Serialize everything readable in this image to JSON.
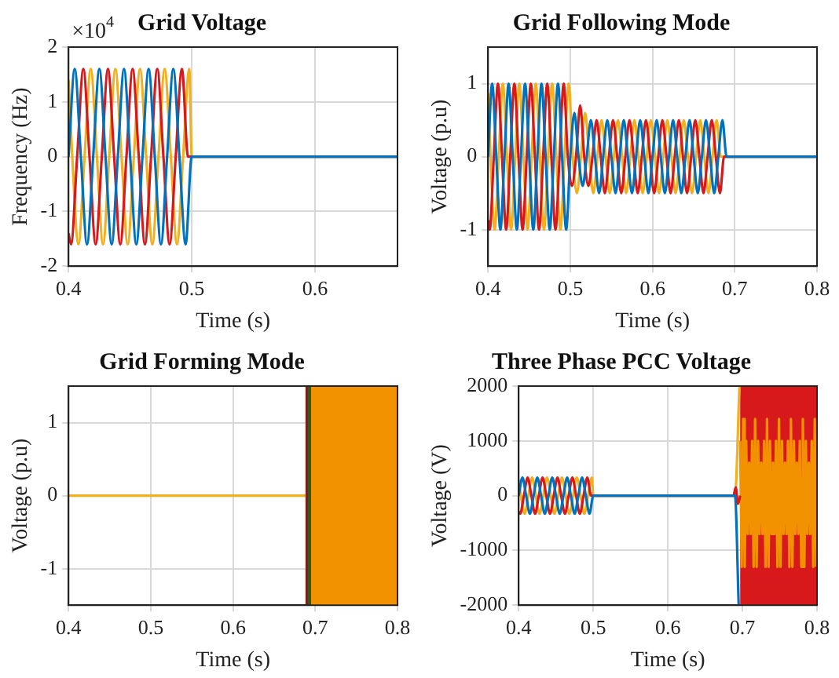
{
  "chart_data": [
    {
      "type": "line",
      "title": "Grid Voltage",
      "xlabel": "Time (s)",
      "ylabel": "Frequency (Hz)",
      "xlim": [
        0.4,
        0.667
      ],
      "xticks": [
        0.4,
        0.5,
        0.6
      ],
      "ylim": [
        -2,
        2
      ],
      "yticks": [
        -2,
        -1,
        0,
        1,
        2
      ],
      "grid": true,
      "marker": "none",
      "annotations": [
        "×10$^{4}$"
      ],
      "series": [
        {
          "color": "#0072bd",
          "x": [
            0.4,
            0.405,
            0.41,
            0.415,
            0.42,
            0.425,
            0.43,
            0.435,
            0.44,
            0.445,
            0.45,
            0.455,
            0.46,
            0.465,
            0.47,
            0.475,
            0.48,
            0.485,
            0.49,
            0.495,
            0.5,
            0.667
          ],
          "values": [
            0,
            1.6,
            0,
            -1.6,
            0,
            1.6,
            0,
            -1.6,
            0,
            1.6,
            0,
            -1.6,
            0,
            1.6,
            0,
            -1.6,
            0,
            1.6,
            0,
            -1.6,
            0,
            0
          ]
        },
        {
          "color": "#d7191c",
          "x": [
            0.4,
            0.402,
            0.407,
            0.412,
            0.417,
            0.422,
            0.427,
            0.432,
            0.437,
            0.442,
            0.447,
            0.452,
            0.457,
            0.462,
            0.467,
            0.472,
            0.477,
            0.482,
            0.487,
            0.492,
            0.497,
            0.5,
            0.667
          ],
          "values": [
            -1.4,
            -1.6,
            0,
            1.6,
            0,
            -1.6,
            0,
            1.6,
            0,
            -1.6,
            0,
            1.6,
            0,
            -1.6,
            0,
            1.6,
            0,
            -1.6,
            0,
            1.6,
            0,
            0,
            0
          ]
        },
        {
          "color": "#f0b020",
          "x": [
            0.4,
            0.403,
            0.408,
            0.413,
            0.418,
            0.423,
            0.428,
            0.433,
            0.438,
            0.443,
            0.448,
            0.453,
            0.458,
            0.463,
            0.468,
            0.473,
            0.478,
            0.483,
            0.488,
            0.493,
            0.498,
            0.5,
            0.667
          ],
          "values": [
            1.4,
            0,
            -1.6,
            0,
            1.6,
            0,
            -1.6,
            0,
            1.6,
            0,
            -1.6,
            0,
            1.6,
            0,
            -1.6,
            0,
            1.6,
            0,
            -1.6,
            0,
            1.6,
            0,
            0
          ]
        }
      ]
    },
    {
      "type": "line",
      "title": "Grid Following Mode",
      "xlabel": "Time (s)",
      "ylabel": "Voltage (p.u)",
      "xlim": [
        0.4,
        0.8
      ],
      "xticks": [
        0.4,
        0.5,
        0.6,
        0.7,
        0.8
      ],
      "ylim": [
        -1.5,
        1.5
      ],
      "yticks": [
        -1,
        0,
        1
      ],
      "grid": true,
      "marker": "none",
      "series": [
        {
          "color": "#0072bd",
          "x": [
            0.4,
            0.405,
            0.41,
            0.415,
            0.42,
            0.425,
            0.43,
            0.435,
            0.44,
            0.445,
            0.45,
            0.455,
            0.46,
            0.465,
            0.47,
            0.475,
            0.48,
            0.485,
            0.49,
            0.495,
            0.5,
            0.505,
            0.51,
            0.515,
            0.52,
            0.525,
            0.53,
            0.535,
            0.54,
            0.545,
            0.55,
            0.555,
            0.56,
            0.565,
            0.57,
            0.575,
            0.58,
            0.585,
            0.59,
            0.595,
            0.6,
            0.605,
            0.61,
            0.615,
            0.62,
            0.625,
            0.63,
            0.635,
            0.64,
            0.645,
            0.65,
            0.655,
            0.66,
            0.665,
            0.67,
            0.675,
            0.68,
            0.685,
            0.69,
            0.8
          ],
          "values": [
            0,
            1,
            0,
            -1,
            0,
            1,
            0,
            -1,
            0,
            1,
            0,
            -1,
            0,
            1,
            0,
            -1,
            0,
            1,
            0,
            -1,
            0,
            0.6,
            0,
            -0.4,
            0,
            0.5,
            0,
            -0.5,
            0,
            0.5,
            0,
            -0.5,
            0,
            0.5,
            0,
            -0.5,
            0,
            0.5,
            0,
            -0.5,
            0,
            0.5,
            0,
            -0.5,
            0,
            0.5,
            0,
            -0.5,
            0,
            0.5,
            0,
            -0.5,
            0,
            0.5,
            0,
            -0.5,
            0,
            0.5,
            0,
            0
          ]
        },
        {
          "color": "#d7191c",
          "x": [
            0.4,
            0.402,
            0.407,
            0.412,
            0.417,
            0.422,
            0.427,
            0.432,
            0.437,
            0.442,
            0.447,
            0.452,
            0.457,
            0.462,
            0.467,
            0.472,
            0.477,
            0.482,
            0.487,
            0.492,
            0.497,
            0.502,
            0.507,
            0.512,
            0.517,
            0.522,
            0.527,
            0.532,
            0.537,
            0.542,
            0.547,
            0.552,
            0.557,
            0.562,
            0.567,
            0.572,
            0.577,
            0.582,
            0.587,
            0.592,
            0.597,
            0.602,
            0.607,
            0.612,
            0.617,
            0.622,
            0.627,
            0.632,
            0.637,
            0.642,
            0.647,
            0.652,
            0.657,
            0.662,
            0.667,
            0.672,
            0.677,
            0.682,
            0.687,
            0.8
          ],
          "values": [
            -0.87,
            -1,
            0,
            1,
            0,
            -1,
            0,
            1,
            0,
            -1,
            0,
            1,
            0,
            -1,
            0,
            1,
            0,
            -1,
            0,
            1,
            0,
            -0.4,
            0,
            0.7,
            0,
            -0.4,
            0,
            0.5,
            0,
            -0.5,
            0,
            0.5,
            0,
            -0.5,
            0,
            0.5,
            0,
            -0.5,
            0,
            0.5,
            0,
            -0.5,
            0,
            0.5,
            0,
            -0.5,
            0,
            0.5,
            0,
            -0.5,
            0,
            0.5,
            0,
            -0.5,
            0,
            0.5,
            0,
            -0.5,
            0,
            0
          ]
        },
        {
          "color": "#f0b020",
          "x": [
            0.4,
            0.403,
            0.408,
            0.413,
            0.418,
            0.423,
            0.428,
            0.433,
            0.438,
            0.443,
            0.448,
            0.453,
            0.458,
            0.463,
            0.468,
            0.473,
            0.478,
            0.483,
            0.488,
            0.493,
            0.498,
            0.503,
            0.508,
            0.513,
            0.518,
            0.523,
            0.528,
            0.533,
            0.538,
            0.543,
            0.548,
            0.553,
            0.558,
            0.563,
            0.568,
            0.573,
            0.578,
            0.583,
            0.588,
            0.593,
            0.598,
            0.603,
            0.608,
            0.613,
            0.618,
            0.623,
            0.628,
            0.633,
            0.638,
            0.643,
            0.648,
            0.653,
            0.658,
            0.663,
            0.668,
            0.673,
            0.678,
            0.683,
            0.8
          ],
          "values": [
            0.87,
            0,
            -1,
            0,
            1,
            0,
            -1,
            0,
            1,
            0,
            -1,
            0,
            1,
            0,
            -1,
            0,
            1,
            0,
            -1,
            0,
            1,
            0,
            -0.5,
            0,
            0.6,
            0,
            -0.5,
            0,
            0.5,
            0,
            -0.5,
            0,
            0.5,
            0,
            -0.5,
            0,
            0.5,
            0,
            -0.5,
            0,
            0.5,
            0,
            -0.5,
            0,
            0.5,
            0,
            -0.5,
            0,
            0.5,
            0,
            -0.5,
            0,
            0.5,
            0,
            -0.5,
            0,
            0.5,
            0,
            0
          ]
        }
      ]
    },
    {
      "type": "line",
      "title": "Grid Forming Mode",
      "xlabel": "Time (s)",
      "ylabel": "Voltage (p.u)",
      "xlim": [
        0.4,
        0.8
      ],
      "xticks": [
        0.4,
        0.5,
        0.6,
        0.7,
        0.8
      ],
      "ylim": [
        -1.5,
        1.5
      ],
      "yticks": [
        -1,
        0,
        1
      ],
      "grid": true,
      "marker": "none",
      "ref_lines": [
        {
          "axis": "x",
          "value": 0.69,
          "color": "#a01010"
        },
        {
          "axis": "x",
          "value": 0.693,
          "color": "#2f5a1f"
        }
      ],
      "bands": [
        {
          "axis": "x",
          "from": 0.694,
          "to": 0.8,
          "color": "#f39200"
        }
      ],
      "series": [
        {
          "color": "#f0b020",
          "x": [
            0.4,
            0.69
          ],
          "values": [
            0,
            0
          ]
        }
      ]
    },
    {
      "type": "line",
      "title": "Three Phase PCC Voltage",
      "xlabel": "Time (s)",
      "ylabel": "Voltage (V)",
      "xlim": [
        0.4,
        0.8
      ],
      "xticks": [
        0.4,
        0.5,
        0.6,
        0.7,
        0.8
      ],
      "ylim": [
        -2000,
        2000
      ],
      "yticks": [
        -2000,
        -1000,
        0,
        1000,
        2000
      ],
      "grid": true,
      "marker": "none",
      "bands": [
        {
          "axis": "x",
          "from": 0.697,
          "to": 0.8,
          "color": "#d7191c"
        }
      ],
      "series": [
        {
          "color": "#0072bd",
          "x": [
            0.4,
            0.405,
            0.41,
            0.415,
            0.42,
            0.425,
            0.43,
            0.435,
            0.44,
            0.445,
            0.45,
            0.455,
            0.46,
            0.465,
            0.47,
            0.475,
            0.48,
            0.485,
            0.49,
            0.495,
            0.5,
            0.69,
            0.695
          ],
          "values": [
            0,
            330,
            0,
            -330,
            0,
            330,
            0,
            -330,
            0,
            330,
            0,
            -330,
            0,
            330,
            0,
            -330,
            0,
            330,
            0,
            -330,
            0,
            0,
            -2000
          ]
        },
        {
          "color": "#d7191c",
          "x": [
            0.4,
            0.402,
            0.407,
            0.412,
            0.417,
            0.422,
            0.427,
            0.432,
            0.437,
            0.442,
            0.447,
            0.452,
            0.457,
            0.462,
            0.467,
            0.472,
            0.477,
            0.482,
            0.487,
            0.492,
            0.497,
            0.5,
            0.688,
            0.691,
            0.694,
            0.697
          ],
          "values": [
            -290,
            -330,
            0,
            330,
            0,
            -330,
            0,
            330,
            0,
            -330,
            0,
            330,
            0,
            -330,
            0,
            330,
            0,
            -330,
            0,
            330,
            0,
            0,
            0,
            150,
            -150,
            0
          ]
        },
        {
          "color": "#f0b020",
          "x": [
            0.4,
            0.403,
            0.408,
            0.413,
            0.418,
            0.423,
            0.428,
            0.433,
            0.438,
            0.443,
            0.448,
            0.453,
            0.458,
            0.463,
            0.468,
            0.473,
            0.478,
            0.483,
            0.488,
            0.493,
            0.498,
            0.5,
            0.69,
            0.696
          ],
          "values": [
            290,
            0,
            -330,
            0,
            330,
            0,
            -330,
            0,
            330,
            0,
            -330,
            0,
            330,
            0,
            -330,
            0,
            330,
            0,
            -330,
            0,
            330,
            0,
            0,
            2000
          ]
        },
        {
          "color": "#f39200",
          "x": [
            0.697,
            0.699,
            0.701,
            0.703,
            0.705,
            0.707,
            0.709,
            0.711,
            0.713,
            0.715,
            0.717,
            0.719,
            0.721,
            0.723,
            0.725,
            0.727,
            0.729,
            0.731,
            0.733,
            0.735,
            0.737,
            0.739,
            0.741,
            0.743,
            0.745,
            0.747,
            0.749,
            0.751,
            0.753,
            0.755,
            0.757,
            0.759,
            0.761,
            0.763,
            0.765,
            0.767,
            0.769,
            0.771,
            0.773,
            0.775,
            0.777,
            0.779,
            0.781,
            0.783,
            0.785,
            0.787,
            0.789,
            0.791,
            0.793,
            0.795,
            0.797,
            0.799
          ],
          "values": [
            1000,
            -1300,
            1400,
            -1300,
            1000,
            -700,
            600,
            -700,
            1000,
            -1300,
            1400,
            -1300,
            1000,
            -700,
            600,
            -700,
            1000,
            -1300,
            1400,
            -1300,
            1000,
            -700,
            600,
            -700,
            1000,
            -1300,
            1400,
            -1300,
            1000,
            -700,
            600,
            -700,
            1000,
            -1300,
            1400,
            -1300,
            1000,
            -700,
            600,
            -700,
            1000,
            -1300,
            1400,
            -1300,
            1000,
            -700,
            600,
            -700,
            1000,
            -1300,
            1400,
            -1300
          ]
        }
      ]
    }
  ]
}
